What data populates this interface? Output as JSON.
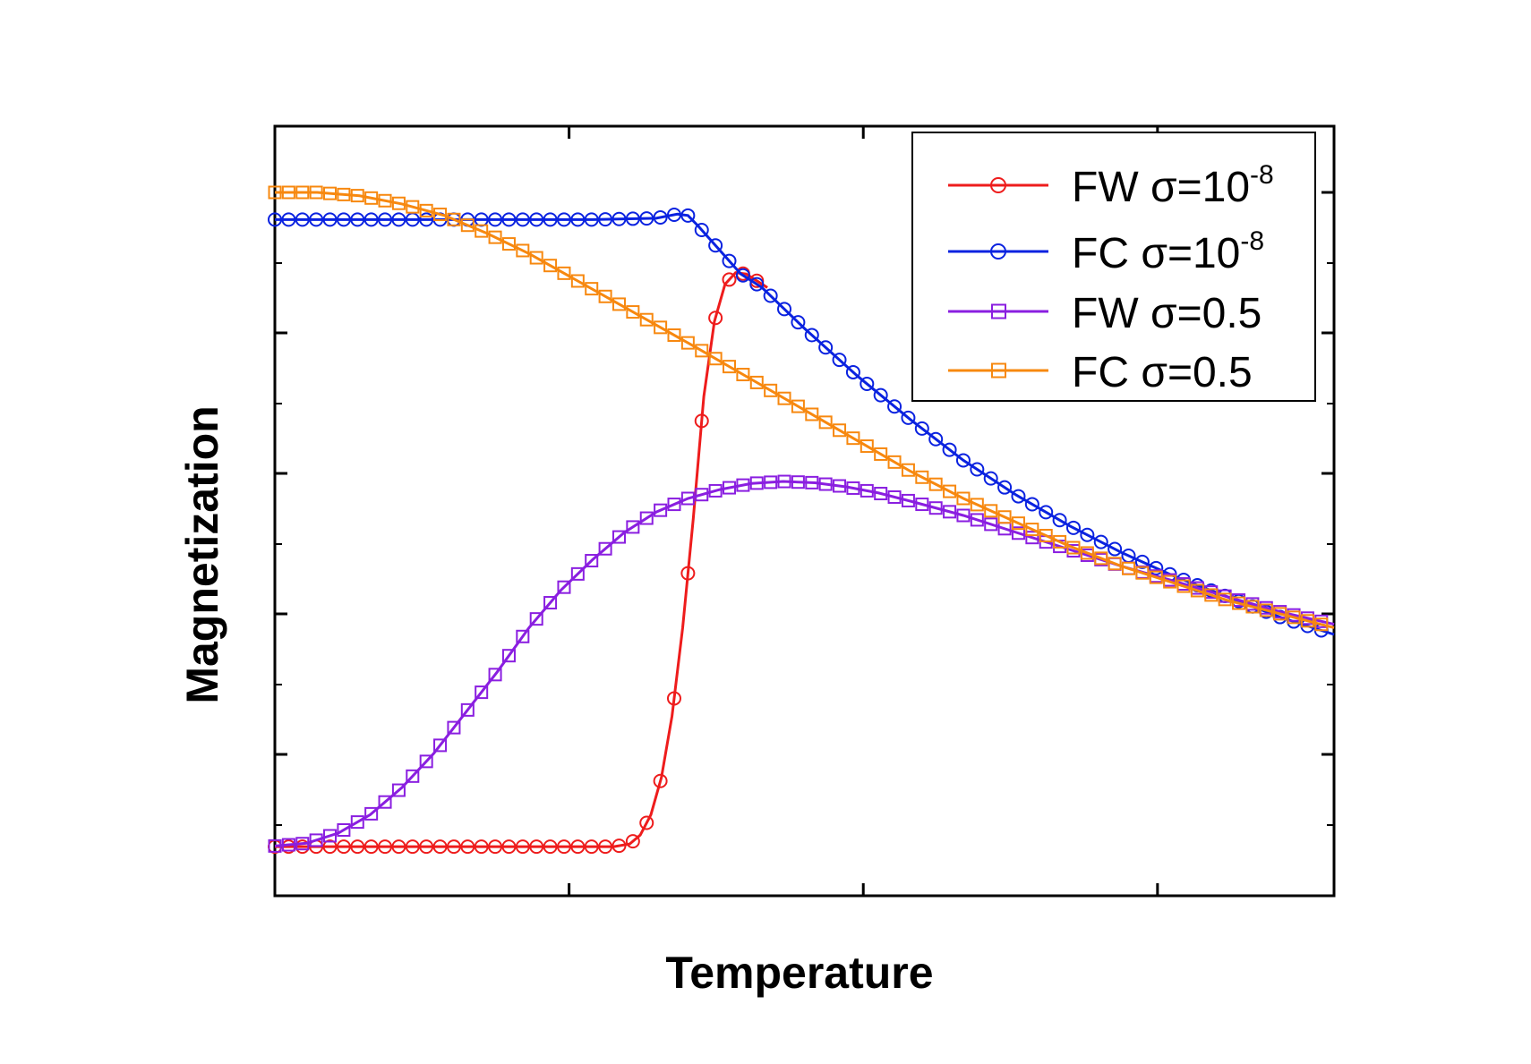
{
  "chart_data": {
    "type": "line",
    "title": "",
    "xlabel": "Temperature",
    "ylabel": "Magnetization",
    "xlim": [
      0,
      100
    ],
    "ylim": [
      0,
      100
    ],
    "x_ticks_labeled": false,
    "y_ticks_labeled": false,
    "grid": false,
    "legend_position": "top-right",
    "series": [
      {
        "name": "FW σ=10^-8",
        "label_main": "FW σ=10",
        "label_sup": "-8",
        "color": "#ee1c1c",
        "marker": "circle",
        "points": [
          [
            0,
            3.8
          ],
          [
            10,
            3.8
          ],
          [
            20,
            3.8
          ],
          [
            30,
            3.8
          ],
          [
            32,
            3.8
          ],
          [
            33.5,
            4.2
          ],
          [
            34.5,
            5.5
          ],
          [
            35.5,
            8.5
          ],
          [
            36.5,
            14
          ],
          [
            37.5,
            23
          ],
          [
            38.5,
            36
          ],
          [
            39.5,
            52
          ],
          [
            40.5,
            70
          ],
          [
            41.5,
            81
          ],
          [
            42.5,
            86.5
          ],
          [
            43.5,
            88.2
          ],
          [
            44.5,
            88
          ],
          [
            45.5,
            87
          ],
          [
            46.5,
            86
          ]
        ]
      },
      {
        "name": "FC σ=10^-8",
        "label_main": "FC σ=10",
        "label_sup": "-8",
        "color": "#0a22e0",
        "marker": "circle",
        "points": [
          [
            0,
            96
          ],
          [
            10,
            96
          ],
          [
            20,
            96
          ],
          [
            30,
            96
          ],
          [
            36,
            96.2
          ],
          [
            38,
            96.8
          ],
          [
            39,
            96.6
          ],
          [
            40,
            95
          ],
          [
            42,
            91.5
          ],
          [
            44,
            88
          ],
          [
            46,
            86
          ],
          [
            48,
            83
          ],
          [
            50,
            80
          ],
          [
            55,
            73
          ],
          [
            60,
            66.6
          ],
          [
            65,
            60.6
          ],
          [
            70,
            55.5
          ],
          [
            75,
            51
          ],
          [
            80,
            47
          ],
          [
            85,
            43.5
          ],
          [
            90,
            40.5
          ],
          [
            95,
            37.5
          ],
          [
            100,
            35
          ]
        ]
      },
      {
        "name": "FW σ=0.5",
        "label_main": "FW σ=0.5",
        "label_sup": "",
        "color": "#8a1ee0",
        "marker": "square",
        "points": [
          [
            0,
            3.9
          ],
          [
            3,
            4.3
          ],
          [
            6,
            5.8
          ],
          [
            9,
            8.5
          ],
          [
            12,
            12.5
          ],
          [
            15,
            17.5
          ],
          [
            18,
            23.5
          ],
          [
            21,
            29.5
          ],
          [
            24,
            36
          ],
          [
            27,
            41.5
          ],
          [
            30,
            46
          ],
          [
            33,
            50
          ],
          [
            36,
            53
          ],
          [
            39,
            55
          ],
          [
            42,
            56.3
          ],
          [
            45,
            57.2
          ],
          [
            48,
            57.5
          ],
          [
            51,
            57.3
          ],
          [
            54,
            56.7
          ],
          [
            57,
            55.8
          ],
          [
            60,
            54.6
          ],
          [
            65,
            52.5
          ],
          [
            70,
            50
          ],
          [
            75,
            47.5
          ],
          [
            80,
            45
          ],
          [
            85,
            42.8
          ],
          [
            90,
            40.5
          ],
          [
            95,
            38.3
          ],
          [
            100,
            36.5
          ]
        ]
      },
      {
        "name": "FC σ=0.5",
        "label_main": "FC σ=0.5",
        "label_sup": "",
        "color": "#f7880f",
        "marker": "square",
        "points": [
          [
            0,
            100
          ],
          [
            4,
            100
          ],
          [
            8,
            99.5
          ],
          [
            12,
            98.3
          ],
          [
            16,
            96.6
          ],
          [
            20,
            94
          ],
          [
            24,
            91
          ],
          [
            28,
            87.5
          ],
          [
            32,
            84
          ],
          [
            36,
            80.5
          ],
          [
            40,
            77
          ],
          [
            45,
            72.5
          ],
          [
            50,
            68
          ],
          [
            55,
            63.5
          ],
          [
            60,
            59
          ],
          [
            65,
            55
          ],
          [
            70,
            51.5
          ],
          [
            75,
            48
          ],
          [
            80,
            45
          ],
          [
            85,
            42.5
          ],
          [
            90,
            40
          ],
          [
            95,
            38
          ],
          [
            100,
            36
          ]
        ]
      }
    ]
  }
}
